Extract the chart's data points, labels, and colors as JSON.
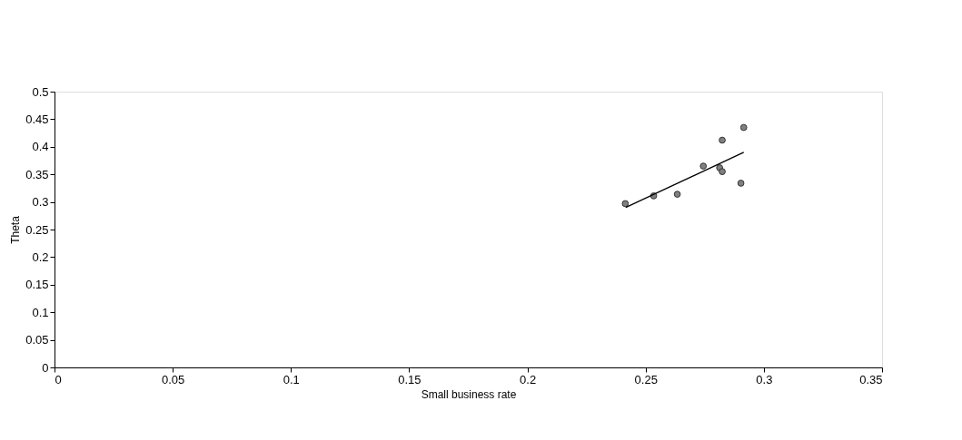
{
  "chart_data": {
    "type": "scatter",
    "xlabel": "Small business rate",
    "ylabel": "Theta",
    "xlim": [
      0,
      0.35
    ],
    "xticks": [
      0,
      0.05,
      0.1,
      0.15,
      0.2,
      0.25,
      0.3,
      0.35
    ],
    "ylim": [
      0,
      0.5
    ],
    "yticks": [
      0,
      0.05,
      0.1,
      0.15,
      0.2,
      0.25,
      0.3,
      0.35,
      0.4,
      0.45,
      0.5
    ],
    "grid": false,
    "series": [
      {
        "type": "scatter",
        "marker": "circle",
        "color": "#808080",
        "x": [
          0.2414,
          0.2534,
          0.2634,
          0.2744,
          0.2813,
          0.2824,
          0.2824,
          0.2903,
          0.2915
        ],
        "values": [
          0.297,
          0.311,
          0.314,
          0.365,
          0.362,
          0.355,
          0.412,
          0.334,
          0.435
        ]
      },
      {
        "type": "line",
        "marker": "none",
        "color": "#000000",
        "x": [
          0.2416,
          0.2915
        ],
        "values": [
          0.29,
          0.39
        ]
      }
    ]
  }
}
